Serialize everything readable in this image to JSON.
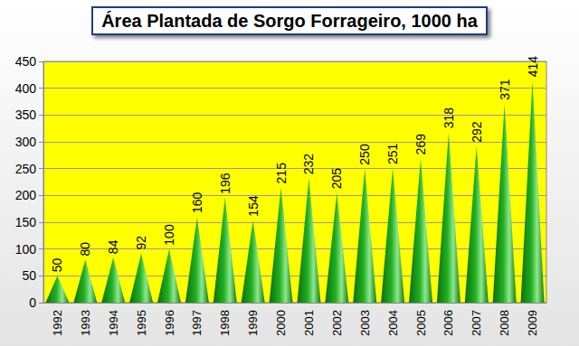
{
  "chart_data": {
    "type": "bar",
    "title": "Área Plantada de Sorgo Forrageiro, 1000 ha",
    "categories": [
      "1992",
      "1993",
      "1994",
      "1995",
      "1996",
      "1997",
      "1998",
      "1999",
      "2000",
      "2001",
      "2002",
      "2003",
      "2004",
      "2005",
      "2006",
      "2007",
      "2008",
      "2009"
    ],
    "values": [
      50,
      80,
      84,
      92,
      100,
      160,
      196,
      154,
      215,
      232,
      205,
      250,
      251,
      269,
      318,
      292,
      371,
      414
    ],
    "color": "#22b022",
    "ylim": [
      0,
      450
    ],
    "yticks": [
      0,
      50,
      100,
      150,
      200,
      250,
      300,
      350,
      400,
      450
    ],
    "grid": true,
    "data_labels": true
  }
}
